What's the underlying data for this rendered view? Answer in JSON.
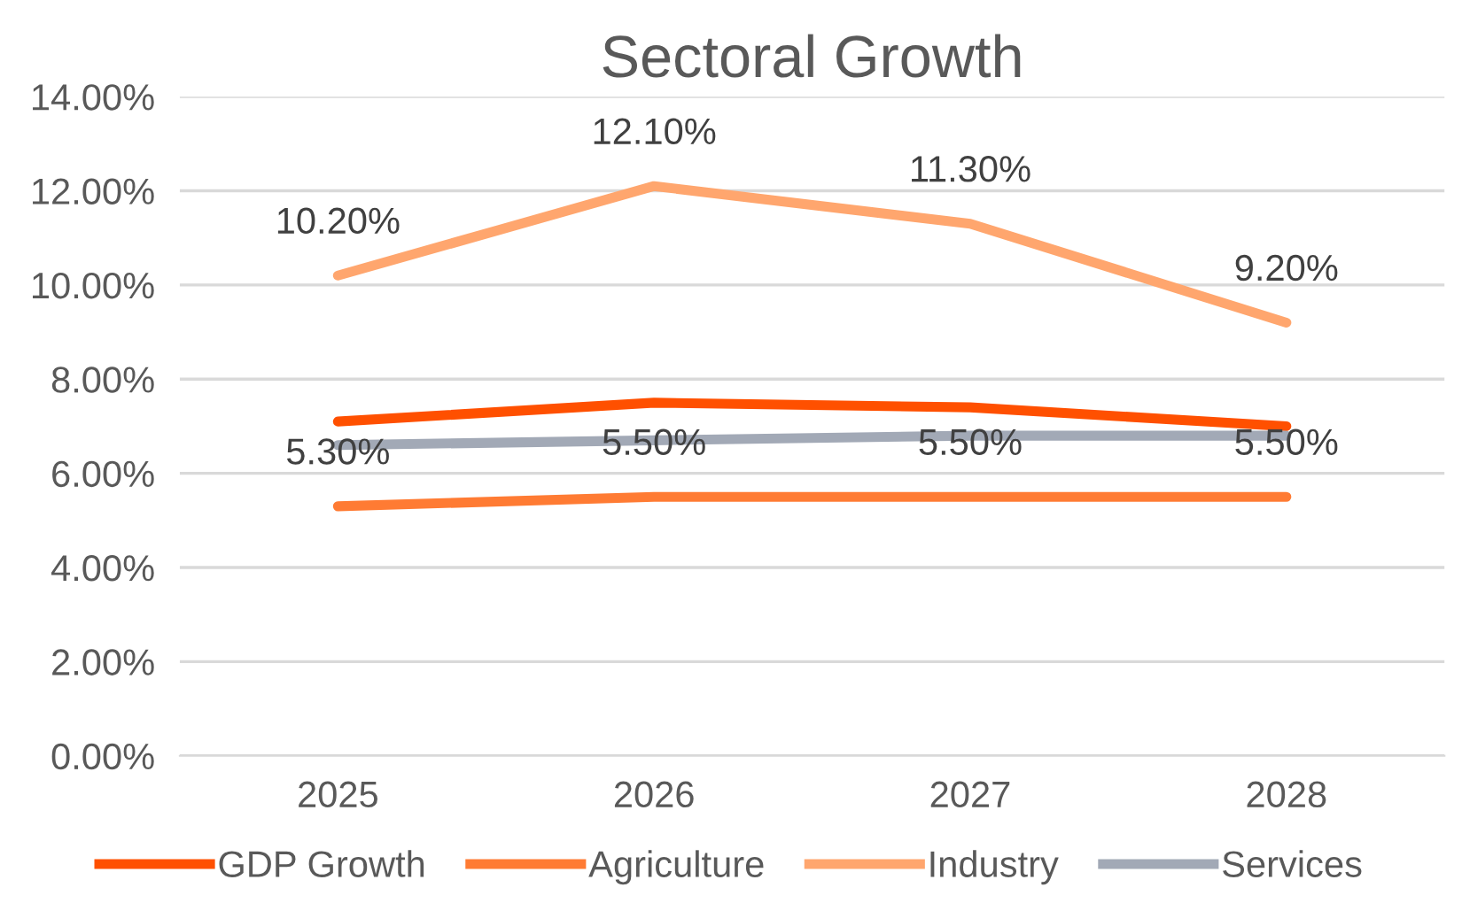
{
  "chart_data": {
    "type": "line",
    "title": "Sectoral Growth",
    "categories": [
      "2025",
      "2026",
      "2027",
      "2028"
    ],
    "series": [
      {
        "name": "GDP Growth",
        "color": "#ff5000",
        "values": [
          7.1,
          7.5,
          7.4,
          7.0
        ]
      },
      {
        "name": "Agriculture",
        "color": "#ff7b33",
        "values": [
          5.3,
          5.5,
          5.5,
          5.5
        ],
        "value_labels": [
          "5.30%",
          "5.50%",
          "5.50%",
          "5.50%"
        ]
      },
      {
        "name": "Industry",
        "color": "#ffa66e",
        "values": [
          10.2,
          12.1,
          11.3,
          9.2
        ],
        "value_labels": [
          "10.20%",
          "12.10%",
          "11.30%",
          "9.20%"
        ]
      },
      {
        "name": "Services",
        "color": "#a2a9b6",
        "values": [
          6.6,
          6.7,
          6.8,
          6.8
        ]
      }
    ],
    "ylim": [
      0,
      14
    ],
    "yticks": [
      {
        "value": 0,
        "label": "0.00%"
      },
      {
        "value": 2,
        "label": "2.00%"
      },
      {
        "value": 4,
        "label": "4.00%"
      },
      {
        "value": 6,
        "label": "6.00%"
      },
      {
        "value": 8,
        "label": "8.00%"
      },
      {
        "value": 10,
        "label": "10.00%"
      },
      {
        "value": 12,
        "label": "12.00%"
      },
      {
        "value": 14,
        "label": "14.00%"
      }
    ],
    "grid": "y",
    "legend": "bottom",
    "marker": "none",
    "line_style": "solid"
  }
}
